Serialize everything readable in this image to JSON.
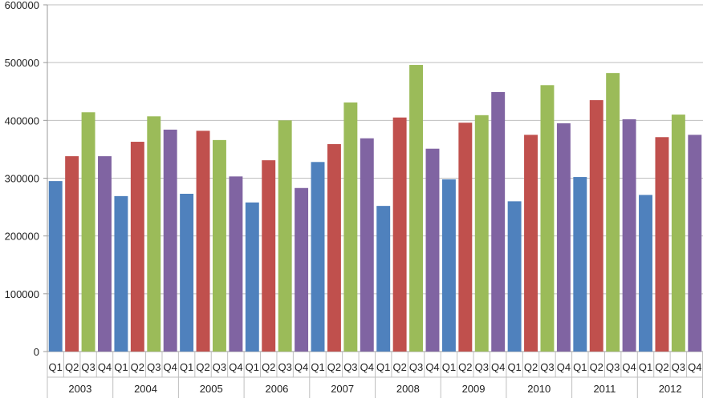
{
  "chart_data": {
    "type": "bar",
    "title": "",
    "xlabel": "",
    "ylabel": "",
    "ylim": [
      0,
      600000
    ],
    "yticks": [
      "0",
      "100000",
      "200000",
      "300000",
      "400000",
      "500000",
      "600000"
    ],
    "grid": "horizontal",
    "legend": "none",
    "quarters": [
      "Q1",
      "Q2",
      "Q3",
      "Q4"
    ],
    "years": [
      "2003",
      "2004",
      "2005",
      "2006",
      "2007",
      "2008",
      "2009",
      "2010",
      "2011",
      "2012"
    ],
    "colors": {
      "Q1": "#4f81bd",
      "Q2": "#c0504d",
      "Q3": "#9bbb59",
      "Q4": "#8064a2"
    },
    "values": [
      [
        295000,
        338000,
        414000,
        338000
      ],
      [
        269000,
        363000,
        407000,
        384000
      ],
      [
        273000,
        382000,
        366000,
        303000
      ],
      [
        258000,
        331000,
        400000,
        283000
      ],
      [
        328000,
        359000,
        431000,
        369000
      ],
      [
        252000,
        405000,
        496000,
        351000
      ],
      [
        298000,
        396000,
        409000,
        449000
      ],
      [
        260000,
        375000,
        461000,
        395000
      ],
      [
        302000,
        435000,
        482000,
        402000
      ],
      [
        271000,
        371000,
        410000,
        375000
      ]
    ]
  }
}
